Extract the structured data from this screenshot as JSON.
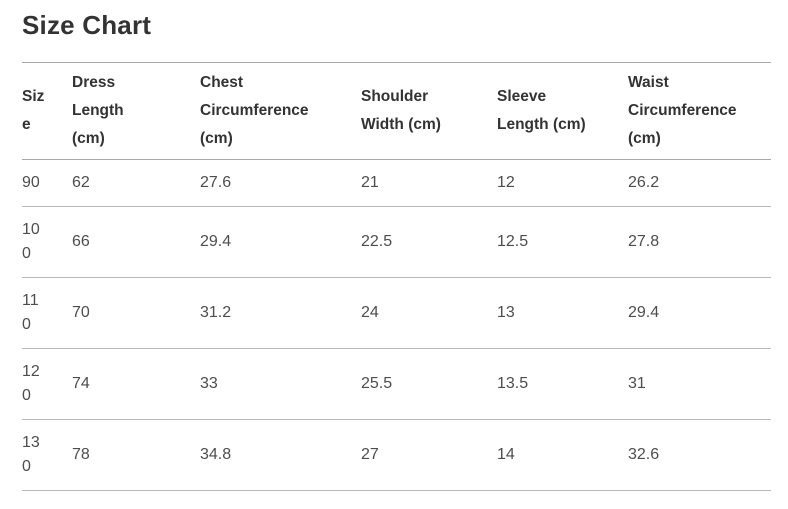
{
  "page": {
    "title": "Size Chart"
  },
  "table": {
    "columns": [
      {
        "id": "size",
        "label": "Size"
      },
      {
        "id": "dress_length",
        "label": "Dress Length (cm)"
      },
      {
        "id": "chest_circumference",
        "label": "Chest Circumference (cm)"
      },
      {
        "id": "shoulder_width",
        "label": "Shoulder Width (cm)"
      },
      {
        "id": "sleeve_length",
        "label": "Sleeve Length (cm)"
      },
      {
        "id": "waist_circumference",
        "label": "Waist Circumference (cm)"
      }
    ],
    "rows": [
      [
        "90",
        "62",
        "27.6",
        "21",
        "12",
        "26.2"
      ],
      [
        "100",
        "66",
        "29.4",
        "22.5",
        "12.5",
        "27.8"
      ],
      [
        "110",
        "70",
        "31.2",
        "24",
        "13",
        "29.4"
      ],
      [
        "120",
        "74",
        "33",
        "25.5",
        "13.5",
        "31"
      ],
      [
        "130",
        "78",
        "34.8",
        "27",
        "14",
        "32.6"
      ]
    ]
  },
  "colors": {
    "page_background": "#ffffff",
    "title_text": "#333333",
    "header_text": "#333333",
    "body_text": "#4d4d4d",
    "border_strong": "#a8a8a8",
    "border_light": "#b8b8b8"
  }
}
